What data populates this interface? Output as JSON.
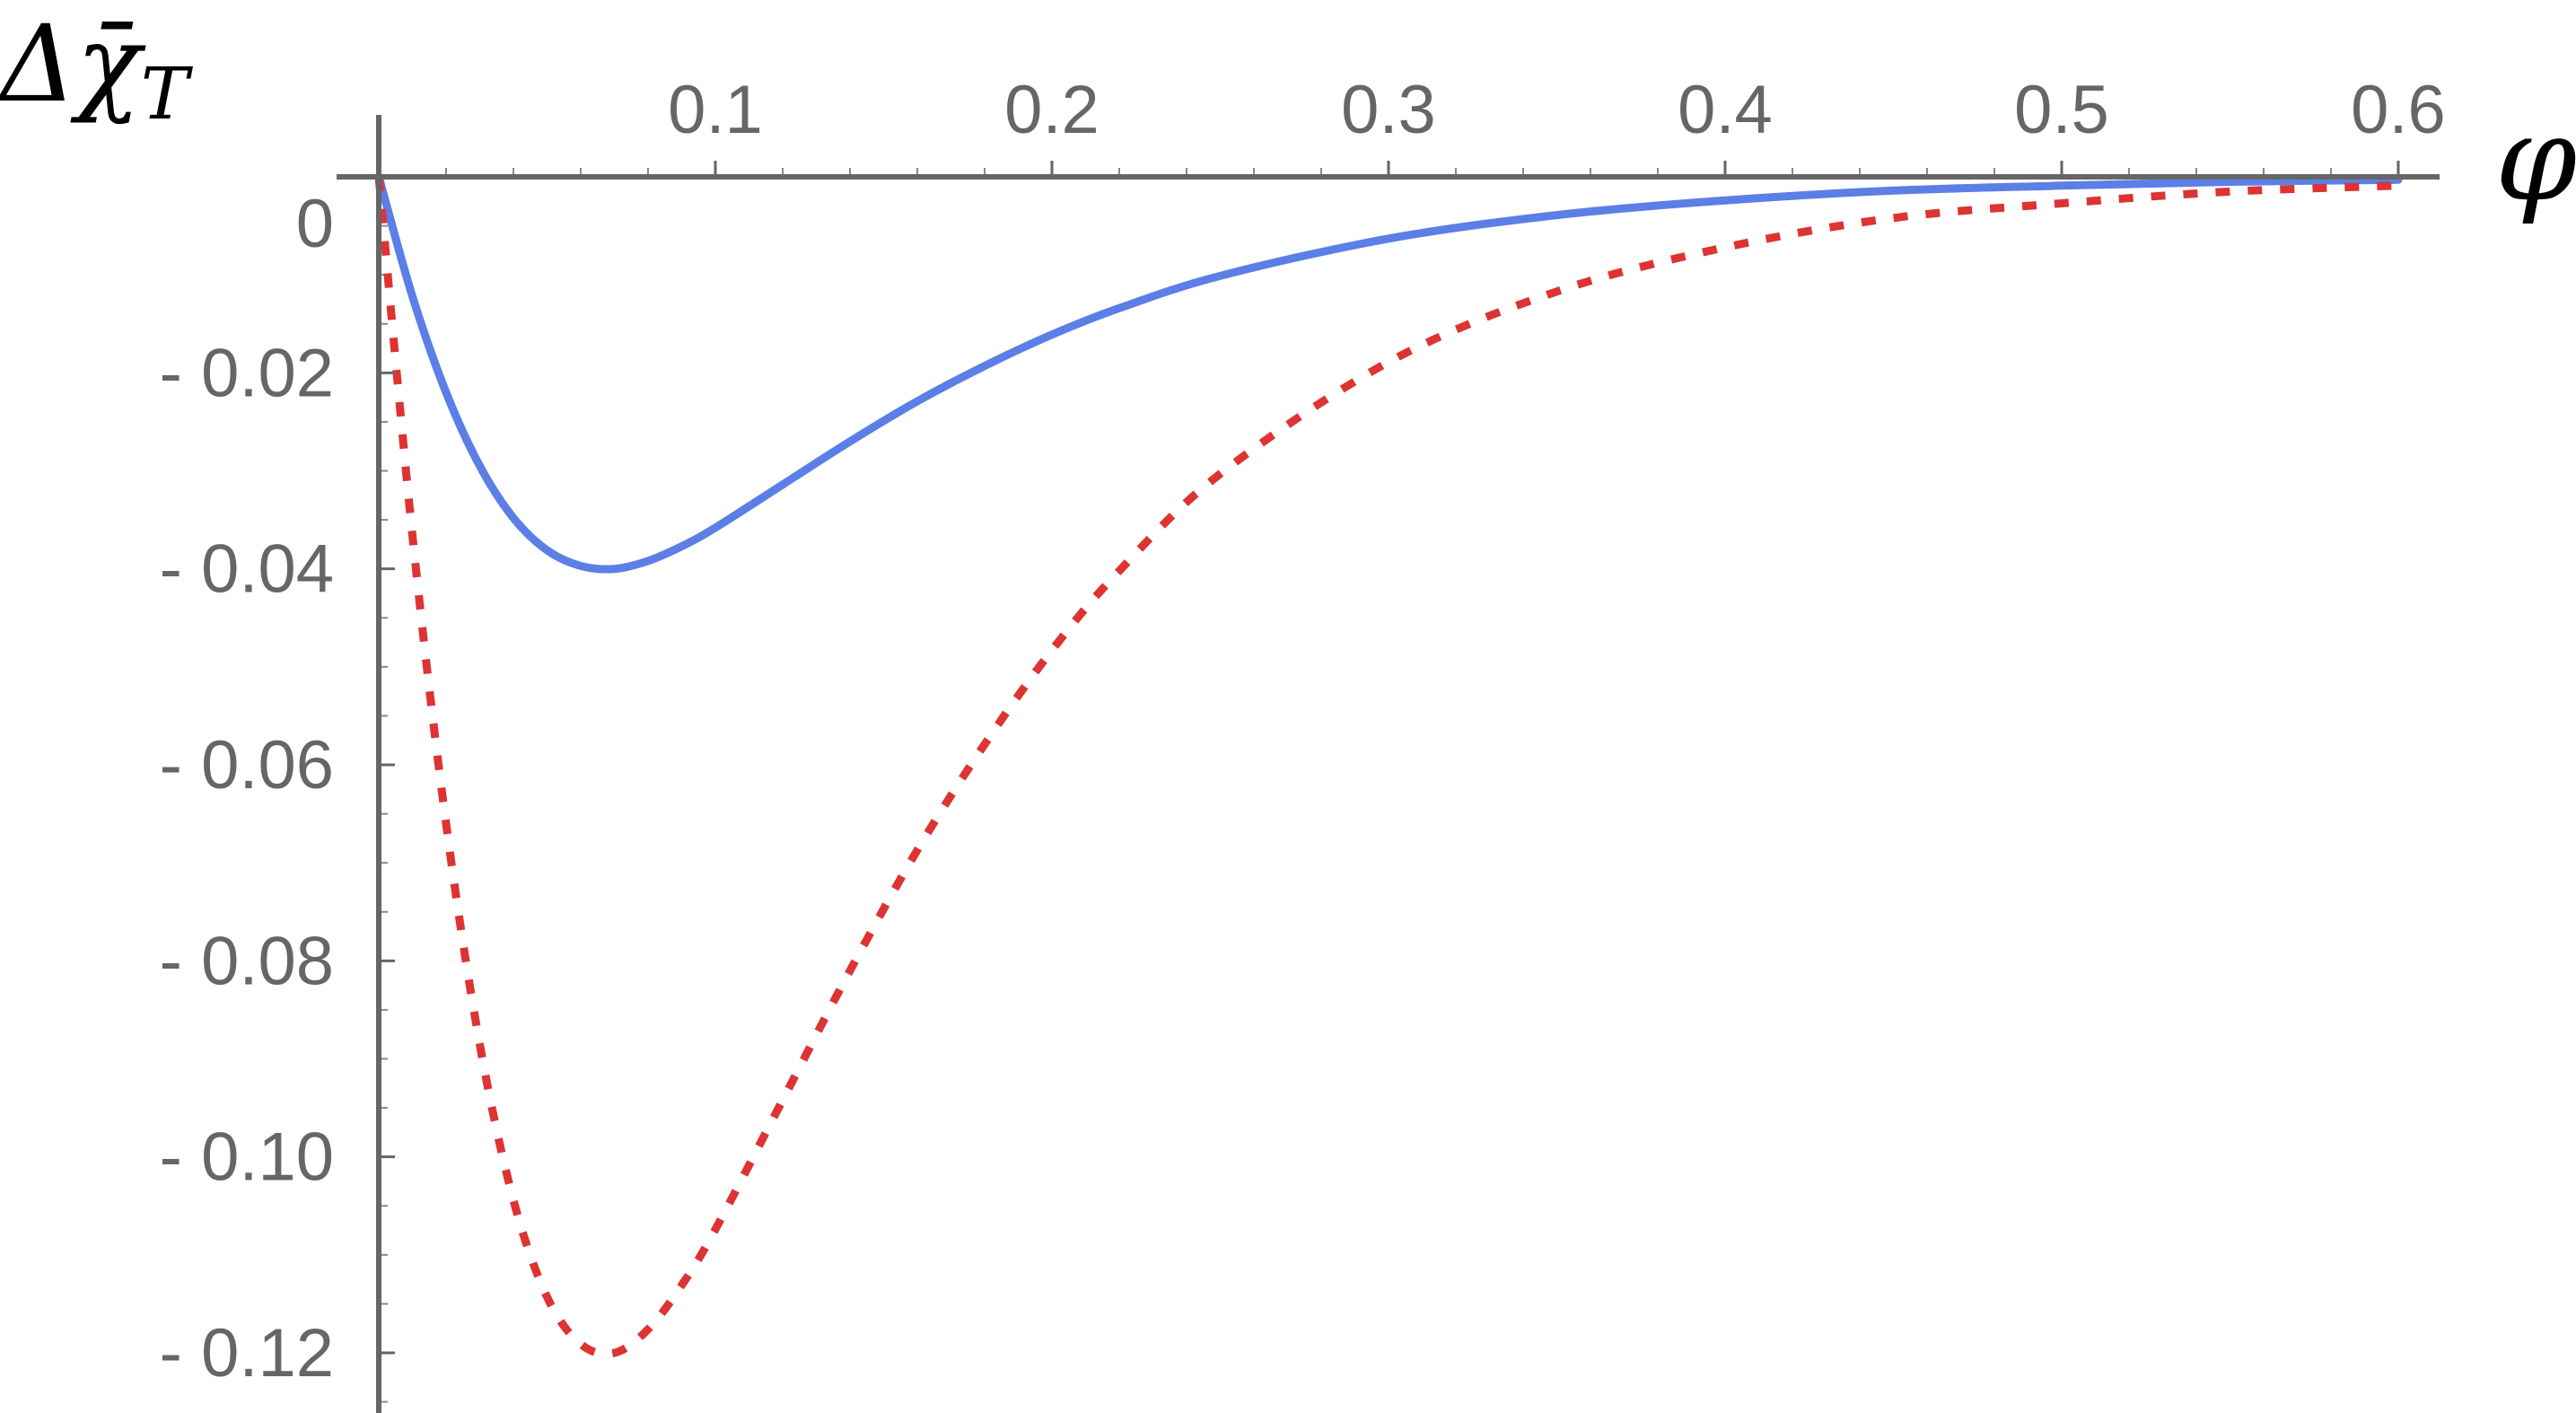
{
  "chart_data": {
    "type": "line",
    "title": "",
    "xlabel": "φ",
    "ylabel": "Δχ̄",
    "ylabel_subscript": "T",
    "xlim": [
      0,
      0.6
    ],
    "ylim": [
      -0.12,
      0
    ],
    "x_ticks": [
      0.1,
      0.2,
      0.3,
      0.4,
      0.5,
      0.6
    ],
    "x_tick_labels": [
      "0.1",
      "0.2",
      "0.3",
      "0.4",
      "0.5",
      "0.6"
    ],
    "y_ticks": [
      0,
      -0.02,
      -0.04,
      -0.06,
      -0.08,
      -0.1,
      -0.12
    ],
    "y_tick_labels": [
      "0",
      "- 0.02",
      "- 0.04",
      "- 0.06",
      "- 0.08",
      "- 0.10",
      "- 0.12"
    ],
    "grid": false,
    "legend": "none",
    "series": [
      {
        "style": "solid",
        "color": "#5b7fe6",
        "x": [
          0,
          0.01,
          0.02,
          0.03,
          0.04,
          0.05,
          0.06,
          0.07,
          0.08,
          0.09,
          0.1,
          0.12,
          0.14,
          0.16,
          0.18,
          0.2,
          0.22,
          0.25,
          0.3,
          0.35,
          0.4,
          0.45,
          0.5,
          0.55,
          0.6
        ],
        "y": [
          0,
          -0.0122,
          -0.022,
          -0.0295,
          -0.0348,
          -0.0381,
          -0.0397,
          -0.04,
          -0.0392,
          -0.0377,
          -0.0358,
          -0.0314,
          -0.027,
          -0.0229,
          -0.0193,
          -0.0161,
          -0.0134,
          -0.0101,
          -0.0063,
          -0.0039,
          -0.0024,
          -0.0014,
          -0.0009,
          -0.0005,
          -0.0003
        ]
      },
      {
        "style": "dotted",
        "color": "#dd3333",
        "x": [
          0,
          0.01,
          0.02,
          0.03,
          0.04,
          0.05,
          0.06,
          0.07,
          0.08,
          0.09,
          0.1,
          0.12,
          0.14,
          0.16,
          0.18,
          0.2,
          0.22,
          0.25,
          0.3,
          0.35,
          0.4,
          0.45,
          0.5,
          0.55,
          0.6
        ],
        "y": [
          0,
          -0.0366,
          -0.066,
          -0.0885,
          -0.1044,
          -0.1143,
          -0.1191,
          -0.12,
          -0.1176,
          -0.1131,
          -0.1074,
          -0.0942,
          -0.081,
          -0.0687,
          -0.0579,
          -0.0483,
          -0.0402,
          -0.0303,
          -0.0189,
          -0.0117,
          -0.0072,
          -0.0042,
          -0.0027,
          -0.0015,
          -0.0009
        ]
      }
    ]
  }
}
